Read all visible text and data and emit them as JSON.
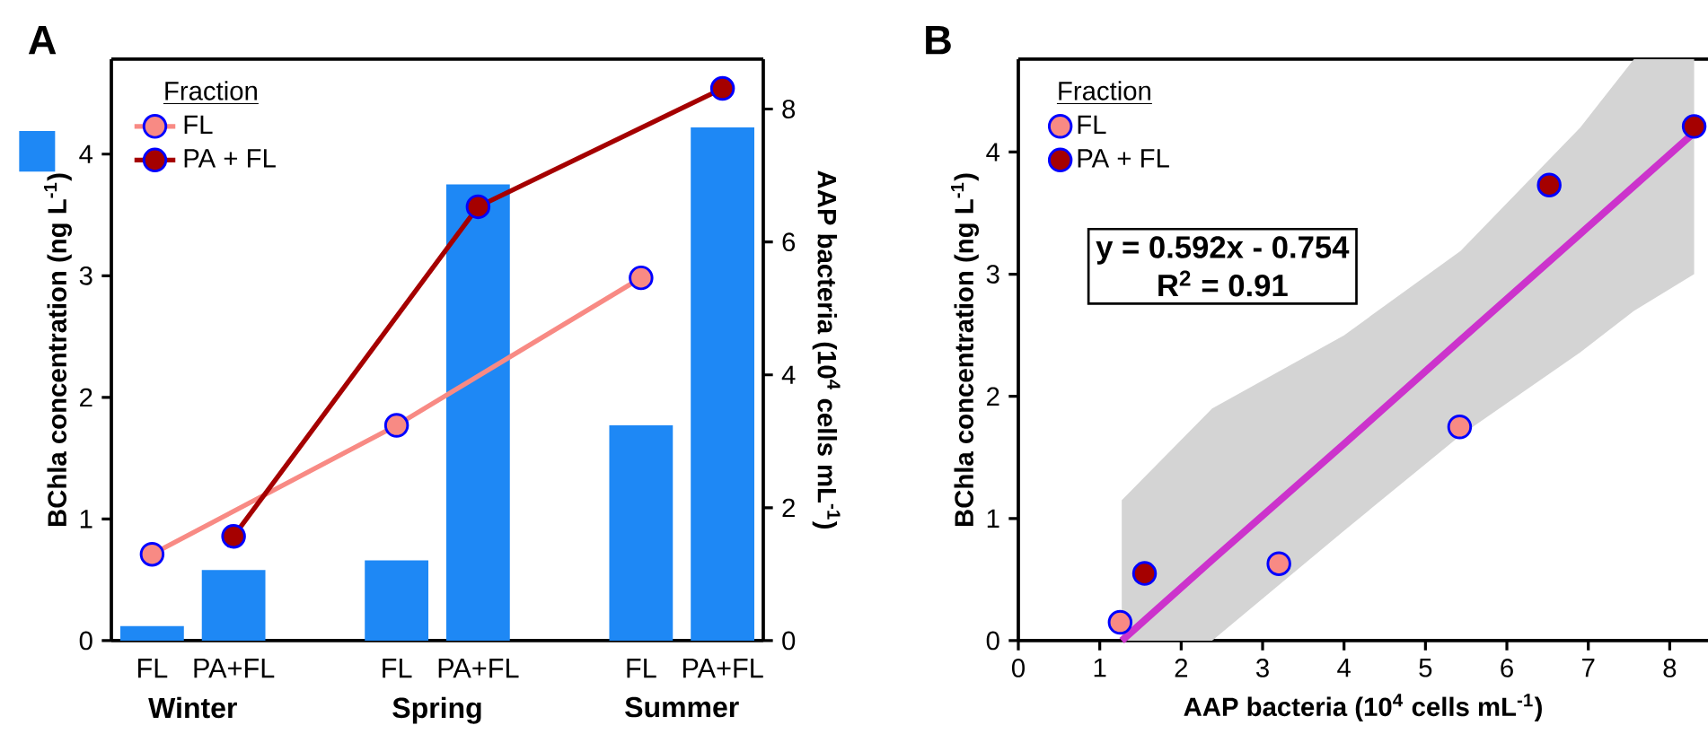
{
  "chart_data": [
    {
      "type": "bar",
      "ylabel": "BChla concentration (ng L$^{-1}$)",
      "y2label": "AAP bacteria (10$^{4}$ cells mL$^{-1}$)",
      "categories": [
        "FL",
        "PA+FL",
        null,
        "FL",
        "PA+FL",
        null,
        "FL",
        "PA+FL"
      ],
      "series": [
        {
          "type": "bar",
          "color": "#1e88f5",
          "values": [
            0.12,
            0.58,
            null,
            0.66,
            3.75,
            null,
            1.77,
            4.22
          ]
        },
        {
          "type": "line",
          "axis": "y2",
          "name": "FL",
          "color": "#f88a84",
          "marker": "circle",
          "values": [
            1.3,
            null,
            null,
            3.24,
            null,
            null,
            5.46,
            null
          ]
        },
        {
          "type": "line",
          "axis": "y2",
          "name": "PA + FL",
          "color": "#a50000",
          "marker": "circle",
          "values": [
            null,
            1.57,
            null,
            null,
            6.53,
            null,
            null,
            8.31
          ]
        }
      ],
      "ylim": [
        0,
        4.78
      ],
      "yticks": [
        0,
        1,
        2,
        3,
        4
      ],
      "y2lim": [
        0,
        8.75
      ],
      "y2ticks": [
        0,
        2,
        4,
        6,
        8
      ],
      "legend": "top left",
      "legend_title": "Fraction",
      "annotations": [
        "A",
        "Winter",
        "Spring",
        "Summer"
      ]
    },
    {
      "type": "scatter",
      "xlabel": "AAP bacteria (10$^{4}$ cells mL$^{-1}$)",
      "ylabel": "BChla concentration (ng L$^{-1}$)",
      "xlim": [
        0,
        8.47
      ],
      "xticks": [
        0,
        1,
        2,
        3,
        4,
        5,
        6,
        7,
        8
      ],
      "ylim": [
        0,
        4.76
      ],
      "yticks": [
        0,
        1,
        2,
        3,
        4
      ],
      "legend": "top left",
      "legend_title": "Fraction",
      "series": [
        {
          "type": "scatter",
          "name": "FL",
          "color": "#f88a84",
          "marker": "circle",
          "x": [
            1.25,
            3.2,
            5.42
          ],
          "values": [
            0.15,
            0.63,
            1.75
          ]
        },
        {
          "type": "scatter",
          "name": "PA + FL",
          "color": "#a50000",
          "marker": "circle",
          "x": [
            1.55,
            6.52,
            8.3
          ],
          "values": [
            0.55,
            3.73,
            4.21
          ]
        },
        {
          "type": "line",
          "color": "#cc33cc",
          "x": [
            1.27,
            2.38,
            4,
            5.43,
            6.9,
            7.56,
            8.3
          ],
          "values": [
            0,
            0.66,
            1.61,
            2.46,
            3.33,
            3.72,
            4.16
          ],
          "lower": [
            0,
            0,
            0.9,
            1.68,
            2.36,
            2.7,
            3.0
          ],
          "upper": [
            1.15,
            1.9,
            2.5,
            3.19,
            4.2,
            4.76,
            4.76
          ]
        }
      ],
      "annotations": [
        "B",
        "y = 0.592x - 0.754",
        "R$^{2}$ = 0.91"
      ]
    }
  ]
}
